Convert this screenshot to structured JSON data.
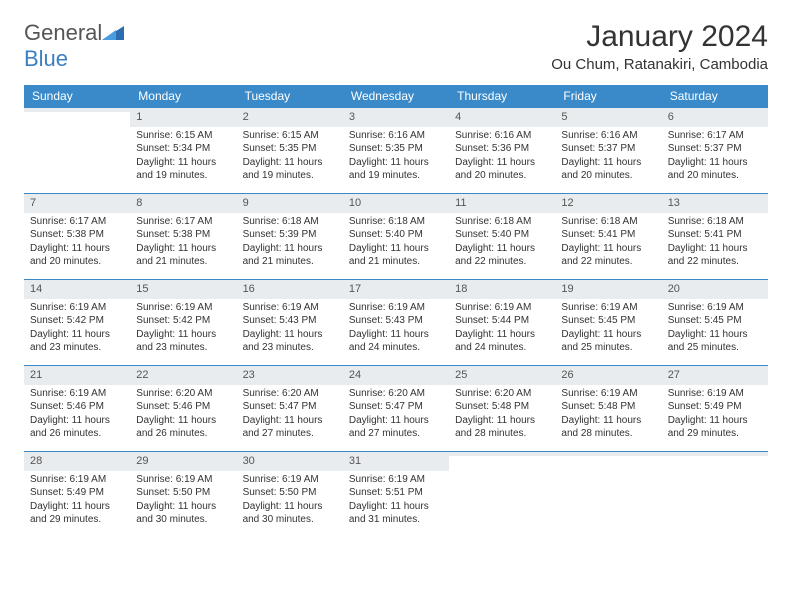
{
  "brand": {
    "name_part1": "General",
    "name_part2": "Blue"
  },
  "title": "January 2024",
  "location": "Ou Chum, Ratanakiri, Cambodia",
  "colors": {
    "header_bg": "#3a8ac9",
    "header_text": "#ffffff",
    "daynum_bg": "#e8ecef",
    "border": "#3a8ac9",
    "body_text": "#333333",
    "logo_gray": "#555555",
    "logo_blue": "#3a7fc4"
  },
  "day_headers": [
    "Sunday",
    "Monday",
    "Tuesday",
    "Wednesday",
    "Thursday",
    "Friday",
    "Saturday"
  ],
  "weeks": [
    [
      {
        "n": "",
        "sr": "",
        "ss": "",
        "dl": ""
      },
      {
        "n": "1",
        "sr": "Sunrise: 6:15 AM",
        "ss": "Sunset: 5:34 PM",
        "dl": "Daylight: 11 hours and 19 minutes."
      },
      {
        "n": "2",
        "sr": "Sunrise: 6:15 AM",
        "ss": "Sunset: 5:35 PM",
        "dl": "Daylight: 11 hours and 19 minutes."
      },
      {
        "n": "3",
        "sr": "Sunrise: 6:16 AM",
        "ss": "Sunset: 5:35 PM",
        "dl": "Daylight: 11 hours and 19 minutes."
      },
      {
        "n": "4",
        "sr": "Sunrise: 6:16 AM",
        "ss": "Sunset: 5:36 PM",
        "dl": "Daylight: 11 hours and 20 minutes."
      },
      {
        "n": "5",
        "sr": "Sunrise: 6:16 AM",
        "ss": "Sunset: 5:37 PM",
        "dl": "Daylight: 11 hours and 20 minutes."
      },
      {
        "n": "6",
        "sr": "Sunrise: 6:17 AM",
        "ss": "Sunset: 5:37 PM",
        "dl": "Daylight: 11 hours and 20 minutes."
      }
    ],
    [
      {
        "n": "7",
        "sr": "Sunrise: 6:17 AM",
        "ss": "Sunset: 5:38 PM",
        "dl": "Daylight: 11 hours and 20 minutes."
      },
      {
        "n": "8",
        "sr": "Sunrise: 6:17 AM",
        "ss": "Sunset: 5:38 PM",
        "dl": "Daylight: 11 hours and 21 minutes."
      },
      {
        "n": "9",
        "sr": "Sunrise: 6:18 AM",
        "ss": "Sunset: 5:39 PM",
        "dl": "Daylight: 11 hours and 21 minutes."
      },
      {
        "n": "10",
        "sr": "Sunrise: 6:18 AM",
        "ss": "Sunset: 5:40 PM",
        "dl": "Daylight: 11 hours and 21 minutes."
      },
      {
        "n": "11",
        "sr": "Sunrise: 6:18 AM",
        "ss": "Sunset: 5:40 PM",
        "dl": "Daylight: 11 hours and 22 minutes."
      },
      {
        "n": "12",
        "sr": "Sunrise: 6:18 AM",
        "ss": "Sunset: 5:41 PM",
        "dl": "Daylight: 11 hours and 22 minutes."
      },
      {
        "n": "13",
        "sr": "Sunrise: 6:18 AM",
        "ss": "Sunset: 5:41 PM",
        "dl": "Daylight: 11 hours and 22 minutes."
      }
    ],
    [
      {
        "n": "14",
        "sr": "Sunrise: 6:19 AM",
        "ss": "Sunset: 5:42 PM",
        "dl": "Daylight: 11 hours and 23 minutes."
      },
      {
        "n": "15",
        "sr": "Sunrise: 6:19 AM",
        "ss": "Sunset: 5:42 PM",
        "dl": "Daylight: 11 hours and 23 minutes."
      },
      {
        "n": "16",
        "sr": "Sunrise: 6:19 AM",
        "ss": "Sunset: 5:43 PM",
        "dl": "Daylight: 11 hours and 23 minutes."
      },
      {
        "n": "17",
        "sr": "Sunrise: 6:19 AM",
        "ss": "Sunset: 5:43 PM",
        "dl": "Daylight: 11 hours and 24 minutes."
      },
      {
        "n": "18",
        "sr": "Sunrise: 6:19 AM",
        "ss": "Sunset: 5:44 PM",
        "dl": "Daylight: 11 hours and 24 minutes."
      },
      {
        "n": "19",
        "sr": "Sunrise: 6:19 AM",
        "ss": "Sunset: 5:45 PM",
        "dl": "Daylight: 11 hours and 25 minutes."
      },
      {
        "n": "20",
        "sr": "Sunrise: 6:19 AM",
        "ss": "Sunset: 5:45 PM",
        "dl": "Daylight: 11 hours and 25 minutes."
      }
    ],
    [
      {
        "n": "21",
        "sr": "Sunrise: 6:19 AM",
        "ss": "Sunset: 5:46 PM",
        "dl": "Daylight: 11 hours and 26 minutes."
      },
      {
        "n": "22",
        "sr": "Sunrise: 6:20 AM",
        "ss": "Sunset: 5:46 PM",
        "dl": "Daylight: 11 hours and 26 minutes."
      },
      {
        "n": "23",
        "sr": "Sunrise: 6:20 AM",
        "ss": "Sunset: 5:47 PM",
        "dl": "Daylight: 11 hours and 27 minutes."
      },
      {
        "n": "24",
        "sr": "Sunrise: 6:20 AM",
        "ss": "Sunset: 5:47 PM",
        "dl": "Daylight: 11 hours and 27 minutes."
      },
      {
        "n": "25",
        "sr": "Sunrise: 6:20 AM",
        "ss": "Sunset: 5:48 PM",
        "dl": "Daylight: 11 hours and 28 minutes."
      },
      {
        "n": "26",
        "sr": "Sunrise: 6:19 AM",
        "ss": "Sunset: 5:48 PM",
        "dl": "Daylight: 11 hours and 28 minutes."
      },
      {
        "n": "27",
        "sr": "Sunrise: 6:19 AM",
        "ss": "Sunset: 5:49 PM",
        "dl": "Daylight: 11 hours and 29 minutes."
      }
    ],
    [
      {
        "n": "28",
        "sr": "Sunrise: 6:19 AM",
        "ss": "Sunset: 5:49 PM",
        "dl": "Daylight: 11 hours and 29 minutes."
      },
      {
        "n": "29",
        "sr": "Sunrise: 6:19 AM",
        "ss": "Sunset: 5:50 PM",
        "dl": "Daylight: 11 hours and 30 minutes."
      },
      {
        "n": "30",
        "sr": "Sunrise: 6:19 AM",
        "ss": "Sunset: 5:50 PM",
        "dl": "Daylight: 11 hours and 30 minutes."
      },
      {
        "n": "31",
        "sr": "Sunrise: 6:19 AM",
        "ss": "Sunset: 5:51 PM",
        "dl": "Daylight: 11 hours and 31 minutes."
      },
      {
        "n": "",
        "sr": "",
        "ss": "",
        "dl": ""
      },
      {
        "n": "",
        "sr": "",
        "ss": "",
        "dl": ""
      },
      {
        "n": "",
        "sr": "",
        "ss": "",
        "dl": ""
      }
    ]
  ]
}
